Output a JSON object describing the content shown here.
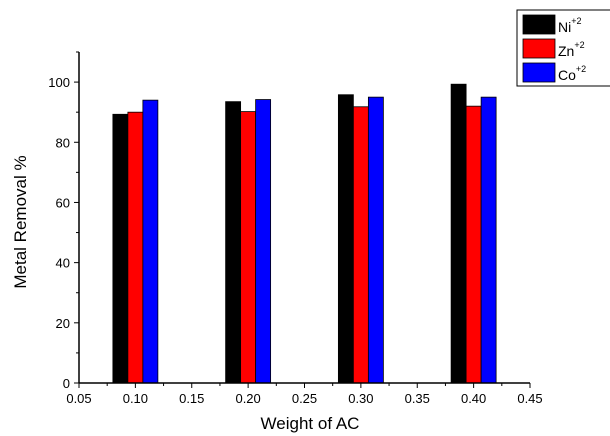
{
  "chart_data": {
    "type": "bar",
    "xlabel": "Weight of AC",
    "ylabel": "Metal Removal %",
    "xlim": [
      0.05,
      0.45
    ],
    "ylim": [
      0,
      110
    ],
    "x_ticks": [
      "0.05",
      "0.10",
      "0.15",
      "0.20",
      "0.25",
      "0.30",
      "0.35",
      "0.40",
      "0.45"
    ],
    "y_ticks": [
      "0",
      "20",
      "40",
      "60",
      "80",
      "100"
    ],
    "grid": false,
    "legend_position": "top-right",
    "x": [
      0.1,
      0.2,
      0.3,
      0.4
    ],
    "series": [
      {
        "name": "Ni",
        "sup": "+2",
        "color": "#000000",
        "values": [
          89.3,
          93.5,
          95.8,
          99.3
        ]
      },
      {
        "name": "Zn",
        "sup": "+2",
        "color": "#ff0000",
        "values": [
          90.0,
          90.2,
          91.8,
          92.0
        ]
      },
      {
        "name": "Co",
        "sup": "+2",
        "color": "#0000ff",
        "values": [
          94.0,
          94.2,
          95.0,
          95.0
        ]
      }
    ]
  }
}
